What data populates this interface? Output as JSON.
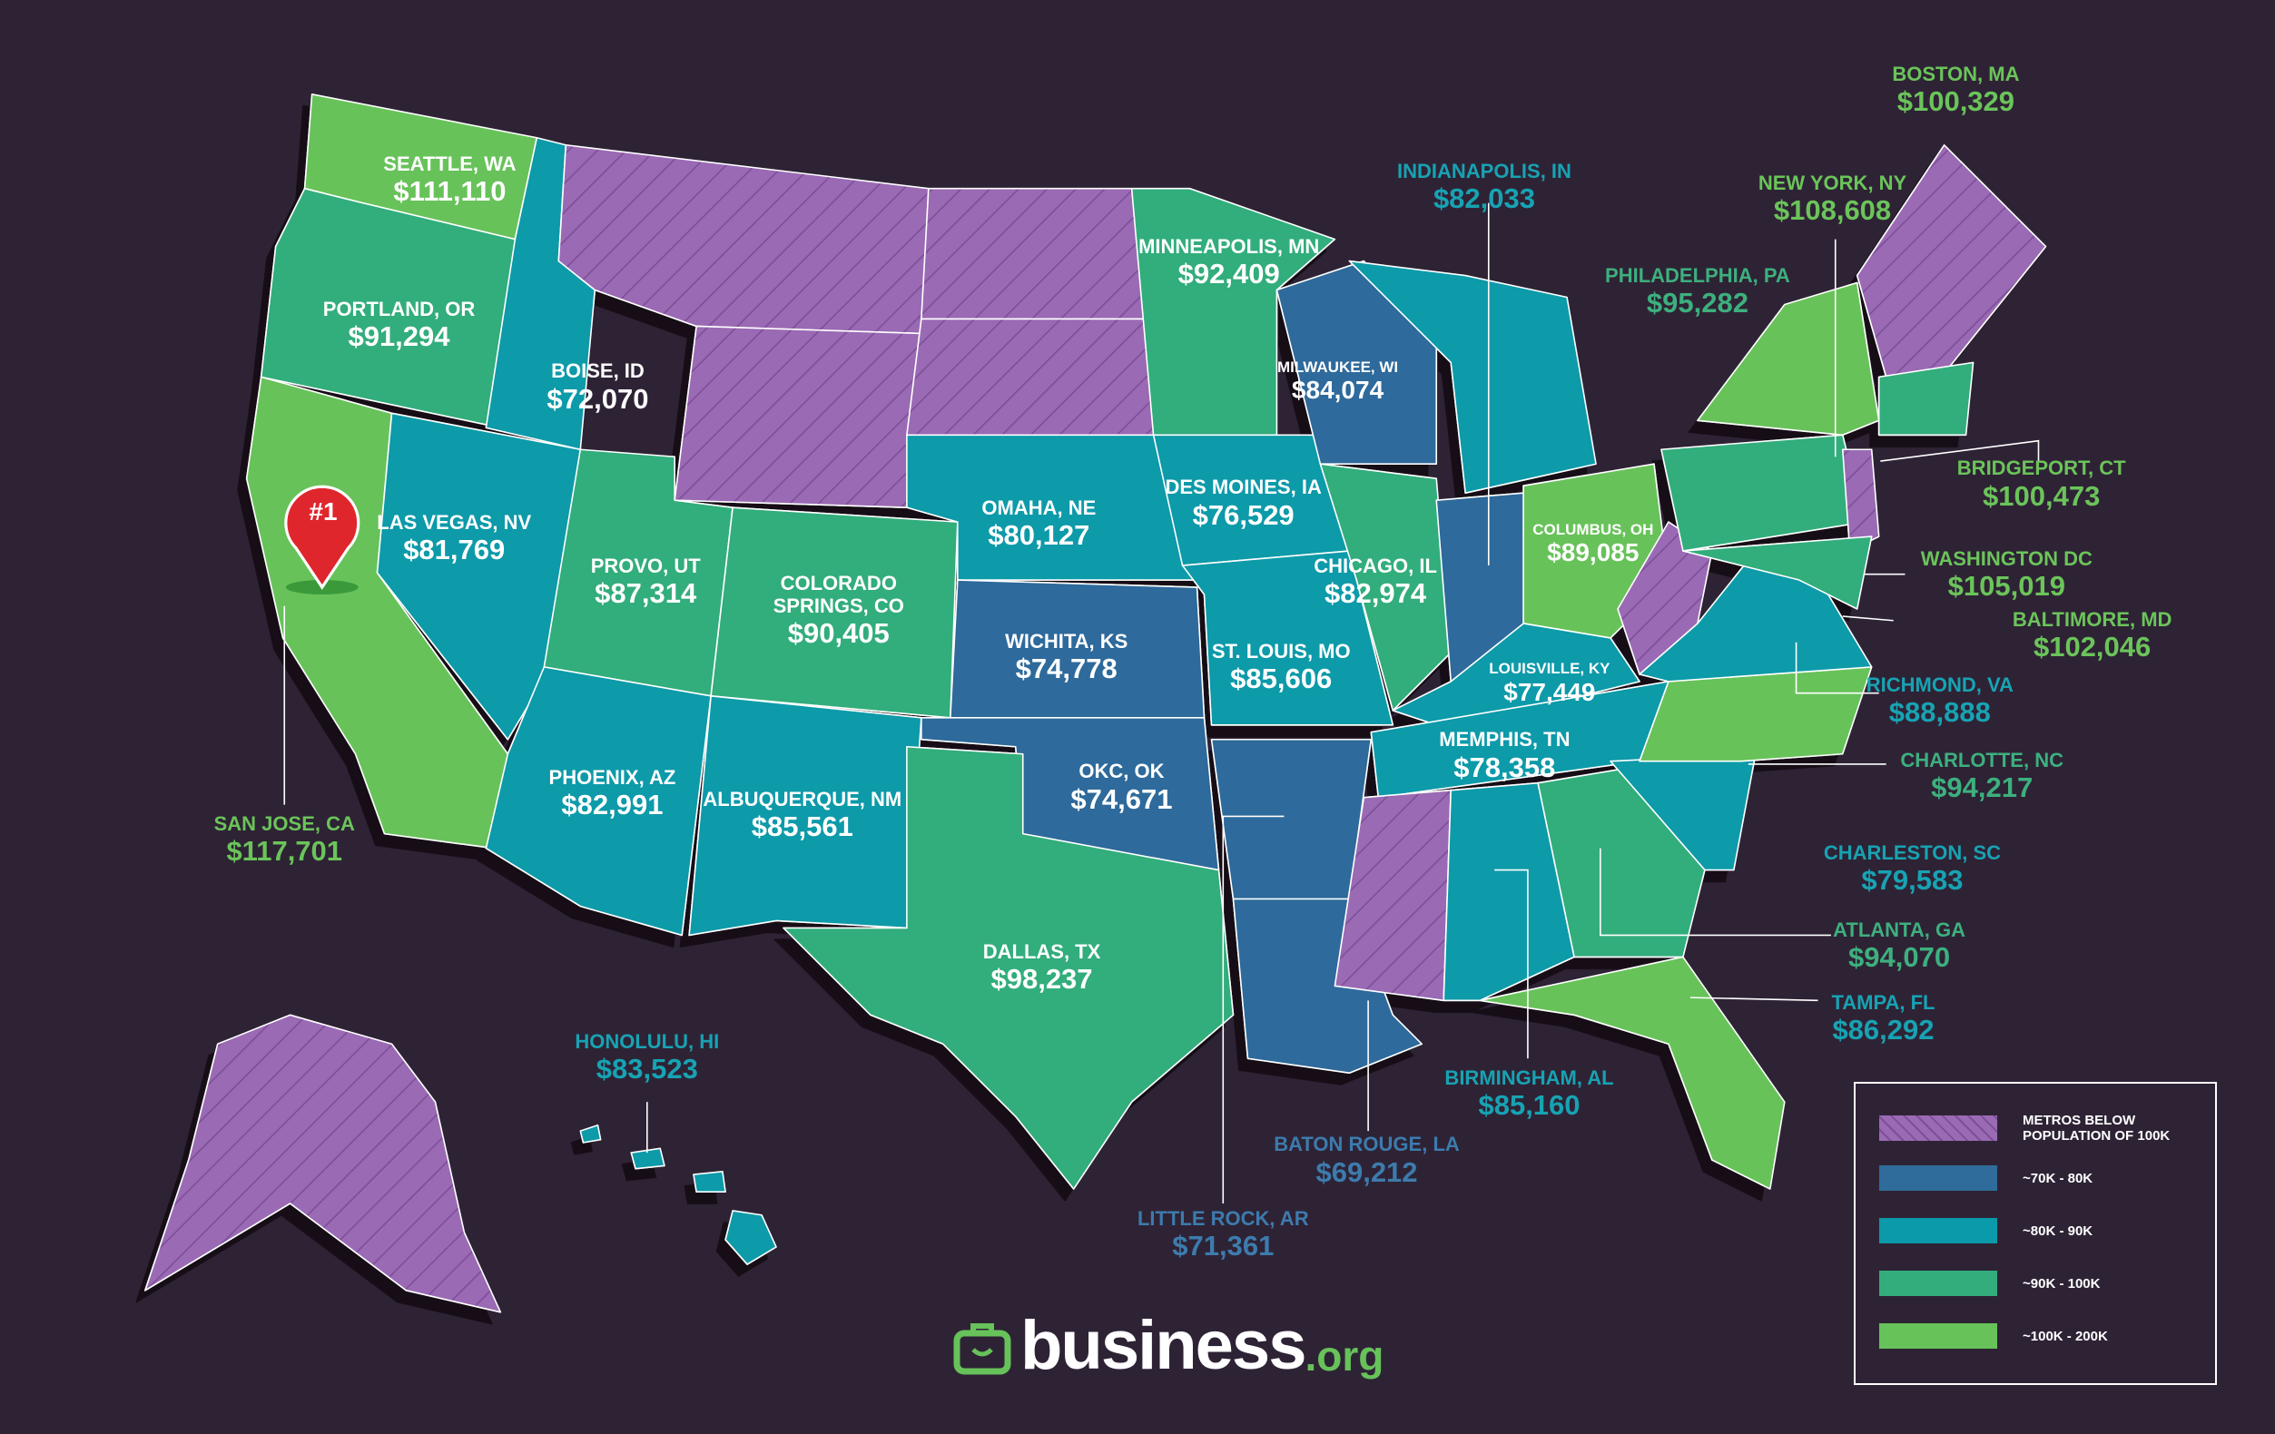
{
  "labels": [
    {
      "city": "SEATTLE, WA",
      "salary": "$111,110"
    },
    {
      "city": "PORTLAND, OR",
      "salary": "$91,294"
    },
    {
      "city": "BOISE, ID",
      "salary": "$72,070"
    },
    {
      "city": "SAN JOSE, CA",
      "salary": "$117,701"
    },
    {
      "city": "LAS VEGAS, NV",
      "salary": "$81,769"
    },
    {
      "city": "PROVO, UT",
      "salary": "$87,314"
    },
    {
      "city": "COLORADO SPRINGS, CO",
      "salary": "$90,405"
    },
    {
      "city": "PHOENIX, AZ",
      "salary": "$82,991"
    },
    {
      "city": "ALBUQUERQUE, NM",
      "salary": "$85,561"
    },
    {
      "city": "OMAHA, NE",
      "salary": "$80,127"
    },
    {
      "city": "WICHITA, KS",
      "salary": "$74,778"
    },
    {
      "city": "OKC, OK",
      "salary": "$74,671"
    },
    {
      "city": "DALLAS, TX",
      "salary": "$98,237"
    },
    {
      "city": "MINNEAPOLIS, MN",
      "salary": "$92,409"
    },
    {
      "city": "DES MOINES, IA",
      "salary": "$76,529"
    },
    {
      "city": "MILWAUKEE, WI",
      "salary": "$84,074"
    },
    {
      "city": "CHICAGO, IL",
      "salary": "$82,974"
    },
    {
      "city": "ST. LOUIS, MO",
      "salary": "$85,606"
    },
    {
      "city": "LOUISVILLE, KY",
      "salary": "$77,449"
    },
    {
      "city": "MEMPHIS, TN",
      "salary": "$78,358"
    },
    {
      "city": "COLUMBUS, OH",
      "salary": "$89,085"
    },
    {
      "city": "INDIANAPOLIS, IN",
      "salary": "$82,033"
    },
    {
      "city": "BOSTON, MA",
      "salary": "$100,329"
    },
    {
      "city": "NEW YORK, NY",
      "salary": "$108,608"
    },
    {
      "city": "PHILADELPHIA, PA",
      "salary": "$95,282"
    },
    {
      "city": "BRIDGEPORT, CT",
      "salary": "$100,473"
    },
    {
      "city": "WASHINGTON DC",
      "salary": "$105,019"
    },
    {
      "city": "BALTIMORE, MD",
      "salary": "$102,046"
    },
    {
      "city": "RICHMOND, VA",
      "salary": "$88,888"
    },
    {
      "city": "CHARLOTTE, NC",
      "salary": "$94,217"
    },
    {
      "city": "CHARLESTON, SC",
      "salary": "$79,583"
    },
    {
      "city": "ATLANTA, GA",
      "salary": "$94,070"
    },
    {
      "city": "TAMPA, FL",
      "salary": "$86,292"
    },
    {
      "city": "BIRMINGHAM, AL",
      "salary": "$85,160"
    },
    {
      "city": "BATON ROUGE, LA",
      "salary": "$69,212"
    },
    {
      "city": "LITTLE ROCK, AR",
      "salary": "$71,361"
    },
    {
      "city": "HONOLULU, HI",
      "salary": "$83,523"
    }
  ],
  "legend": [
    {
      "label": "METROS BELOW POPULATION OF 100K",
      "color": "#9a6ab4"
    },
    {
      "label": "~70K - 80K",
      "color": "#2f6b9b"
    },
    {
      "label": "~80K - 90K",
      "color": "#0b9aa9"
    },
    {
      "label": "~90K - 100K",
      "color": "#33ad7c"
    },
    {
      "label": "~100K - 200K",
      "color": "#67c25a"
    }
  ],
  "marker": "#1",
  "logo": {
    "name": "business",
    "suffix": ".org"
  }
}
